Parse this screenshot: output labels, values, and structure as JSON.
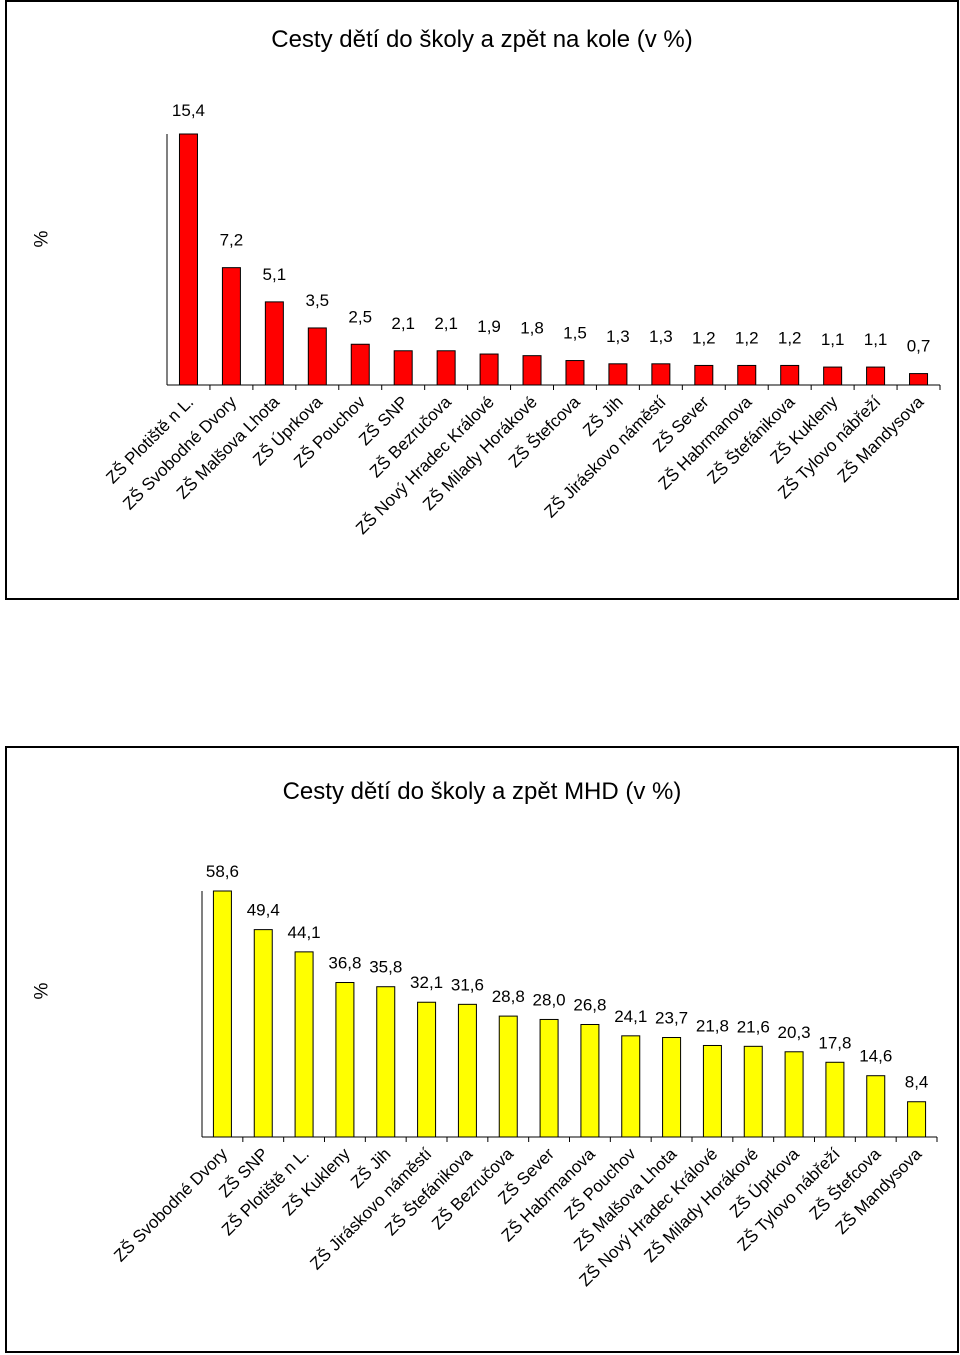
{
  "chart_data": [
    {
      "type": "bar",
      "title": "Cesty dětí do školy a zpět na kole (v %)",
      "xlabel": "",
      "ylabel": "%",
      "bar_color": "#ff0000",
      "grid": false,
      "legend": "none",
      "categories": [
        "ZŠ Plotiště n L.",
        "ZŠ Svobodné Dvory",
        "ZŠ Malšova Lhota",
        "ZŠ Úprkova",
        "ZŠ Pouchov",
        "ZŠ SNP",
        "ZŠ Bezručova",
        "ZŠ Nový Hradec Králové",
        "ZŠ Milady Horákové",
        "ZŠ Štefcova",
        "ZŠ Jih",
        "ZŠ Jiráskovo náměstí",
        "ZŠ Sever",
        "ZŠ Habrmanova",
        "ZŠ Štefánikova",
        "ZŠ Kukleny",
        "ZŠ Tylovo nábřeží",
        "ZŠ Mandysova"
      ],
      "values": [
        15.4,
        7.2,
        5.1,
        3.5,
        2.5,
        2.1,
        2.1,
        1.9,
        1.8,
        1.5,
        1.3,
        1.3,
        1.2,
        1.2,
        1.2,
        1.1,
        1.1,
        0.7
      ],
      "labels": [
        "15,4",
        "7,2",
        "5,1",
        "3,5",
        "2,5",
        "2,1",
        "2,1",
        "1,9",
        "1,8",
        "1,5",
        "1,3",
        "1,3",
        "1,2",
        "1,2",
        "1,2",
        "1,1",
        "1,1",
        "0,7"
      ]
    },
    {
      "type": "bar",
      "title": "Cesty dětí do školy a zpět MHD (v %)",
      "xlabel": "",
      "ylabel": "%",
      "bar_color": "#ffff00",
      "grid": false,
      "legend": "none",
      "categories": [
        "ZŠ Svobodné Dvory",
        "ZŠ SNP",
        "ZŠ Plotiště n L.",
        "ZŠ Kukleny",
        "ZŠ Jih",
        "ZŠ Jiráskovo náměstí",
        "ZŠ Štefánikova",
        "ZŠ Bezručova",
        "ZŠ Sever",
        "ZŠ Habrmanova",
        "ZŠ Pouchov",
        "ZŠ Malšova Lhota",
        "ZŠ Nový Hradec Králové",
        "ZŠ Milady Horákové",
        "ZŠ Úprkova",
        "ZŠ Tylovo nábřeží",
        "ZŠ Štefcova",
        "ZŠ Mandysova"
      ],
      "values": [
        58.6,
        49.4,
        44.1,
        36.8,
        35.8,
        32.1,
        31.6,
        28.8,
        28.0,
        26.8,
        24.1,
        23.7,
        21.8,
        21.6,
        20.3,
        17.8,
        14.6,
        8.4
      ],
      "labels": [
        "58,6",
        "49,4",
        "44,1",
        "36,8",
        "35,8",
        "32,1",
        "31,6",
        "28,8",
        "28,0",
        "26,8",
        "24,1",
        "23,7",
        "21,8",
        "21,6",
        "20,3",
        "17,8",
        "14,6",
        "8,4"
      ]
    }
  ]
}
